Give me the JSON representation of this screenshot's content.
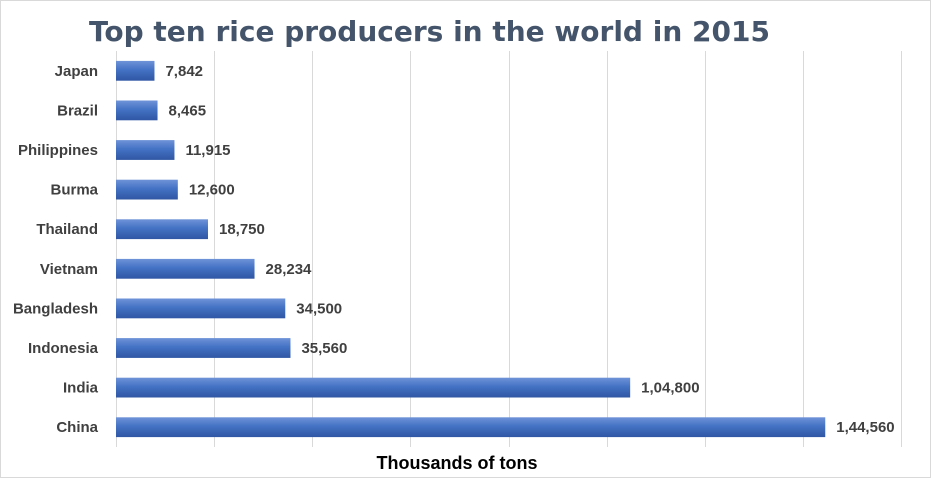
{
  "chart_data": {
    "type": "bar",
    "orientation": "horizontal",
    "title": "Top ten rice producers in the world in 2015",
    "xlabel": "Thousands  of  tons",
    "ylabel": "",
    "categories": [
      "Japan",
      "Brazil",
      "Philippines",
      "Burma",
      "Thailand",
      "Vietnam",
      "Bangladesh",
      "Indonesia",
      "India",
      "China"
    ],
    "values": [
      7842,
      8465,
      11915,
      12600,
      18750,
      28234,
      34500,
      35560,
      104800,
      144560
    ],
    "value_labels": [
      "7,842",
      "8,465",
      "11,915",
      "12,600",
      "18,750",
      "28,234",
      "34,500",
      "35,560",
      "1,04,800",
      "1,44,560"
    ],
    "xlim": [
      0,
      160000
    ],
    "gridlines": true,
    "grid_interval": 20000,
    "legend": "none",
    "bar_color": "#4472c4"
  }
}
